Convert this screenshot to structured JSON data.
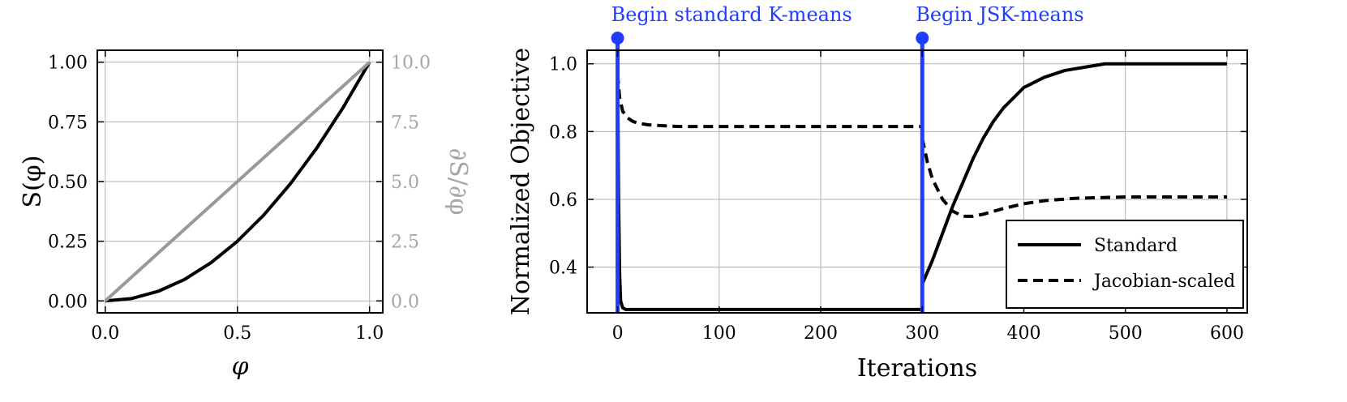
{
  "chart_data": [
    {
      "type": "line",
      "xlabel": "φ",
      "ylabel": "S(φ)",
      "y2label": "∂S/∂φ",
      "xlim": [
        -0.03,
        1.05
      ],
      "ylim": [
        -0.05,
        1.05
      ],
      "y2lim": [
        -0.5,
        10.5
      ],
      "x_ticks": [
        0.0,
        0.5,
        1.0
      ],
      "x_tick_labels": [
        "0.0",
        "0.5",
        "1.0"
      ],
      "y_ticks": [
        0.0,
        0.25,
        0.5,
        0.75,
        1.0
      ],
      "y_tick_labels": [
        "0.00",
        "0.25",
        "0.50",
        "0.75",
        "1.00"
      ],
      "y2_ticks": [
        0.0,
        2.5,
        5.0,
        7.5,
        10.0
      ],
      "y2_tick_labels": [
        "0.0",
        "2.5",
        "5.0",
        "7.5",
        "10.0"
      ],
      "grid": true,
      "series": [
        {
          "axis": "left",
          "color": "#000000",
          "x": [
            0,
            0.1,
            0.2,
            0.3,
            0.4,
            0.5,
            0.6,
            0.7,
            0.8,
            0.9,
            1.0
          ],
          "values": [
            0,
            0.01,
            0.04,
            0.09,
            0.16,
            0.25,
            0.36,
            0.49,
            0.64,
            0.81,
            1.0
          ]
        },
        {
          "axis": "right",
          "color": "#999999",
          "x": [
            0,
            1.0
          ],
          "values": [
            0,
            10.0
          ]
        }
      ]
    },
    {
      "type": "line",
      "xlabel": "Iterations",
      "ylabel": "Normalized Objective",
      "xlim": [
        -30,
        620
      ],
      "ylim": [
        0.265,
        1.04
      ],
      "x_ticks": [
        0,
        100,
        200,
        300,
        400,
        500,
        600
      ],
      "x_tick_labels": [
        "0",
        "100",
        "200",
        "300",
        "400",
        "500",
        "600"
      ],
      "y_ticks": [
        0.4,
        0.6,
        0.8,
        1.0
      ],
      "y_tick_labels": [
        "0.4",
        "0.6",
        "0.8",
        "1.0"
      ],
      "grid": true,
      "legend": "bottom-right",
      "series": [
        {
          "name": "Standard",
          "style": "solid",
          "color": "#000000",
          "segments": [
            {
              "x": [
                0,
                1,
                2,
                3,
                5,
                8,
                12,
                300
              ],
              "values": [
                1.0,
                0.6,
                0.38,
                0.3,
                0.28,
                0.275,
                0.275,
                0.275
              ]
            },
            {
              "x": [
                300,
                310,
                320,
                330,
                340,
                350,
                360,
                370,
                380,
                390,
                400,
                420,
                440,
                460,
                480,
                500,
                600
              ],
              "values": [
                0.35,
                0.42,
                0.5,
                0.58,
                0.65,
                0.72,
                0.78,
                0.83,
                0.87,
                0.9,
                0.93,
                0.96,
                0.98,
                0.99,
                1.0,
                1.0,
                1.0
              ]
            }
          ]
        },
        {
          "name": "Jacobian-scaled",
          "style": "dashed",
          "color": "#000000",
          "segments": [
            {
              "x": [
                0,
                2,
                5,
                10,
                15,
                20,
                30,
                40,
                60,
                80,
                100,
                150,
                200,
                250,
                300
              ],
              "values": [
                0.97,
                0.9,
                0.86,
                0.84,
                0.83,
                0.825,
                0.82,
                0.818,
                0.815,
                0.815,
                0.815,
                0.815,
                0.815,
                0.815,
                0.815
              ]
            },
            {
              "x": [
                300,
                305,
                310,
                320,
                330,
                340,
                350,
                360,
                380,
                400,
                420,
                450,
                500,
                550,
                600
              ],
              "values": [
                0.78,
                0.71,
                0.66,
                0.6,
                0.565,
                0.55,
                0.55,
                0.556,
                0.573,
                0.587,
                0.596,
                0.603,
                0.607,
                0.607,
                0.607
              ]
            }
          ]
        }
      ],
      "markers": [
        {
          "x": 0,
          "label": "Begin standard K-means",
          "color": "#1f3cff"
        },
        {
          "x": 300,
          "label": "Begin JSK-means",
          "color": "#1f3cff"
        }
      ]
    }
  ]
}
